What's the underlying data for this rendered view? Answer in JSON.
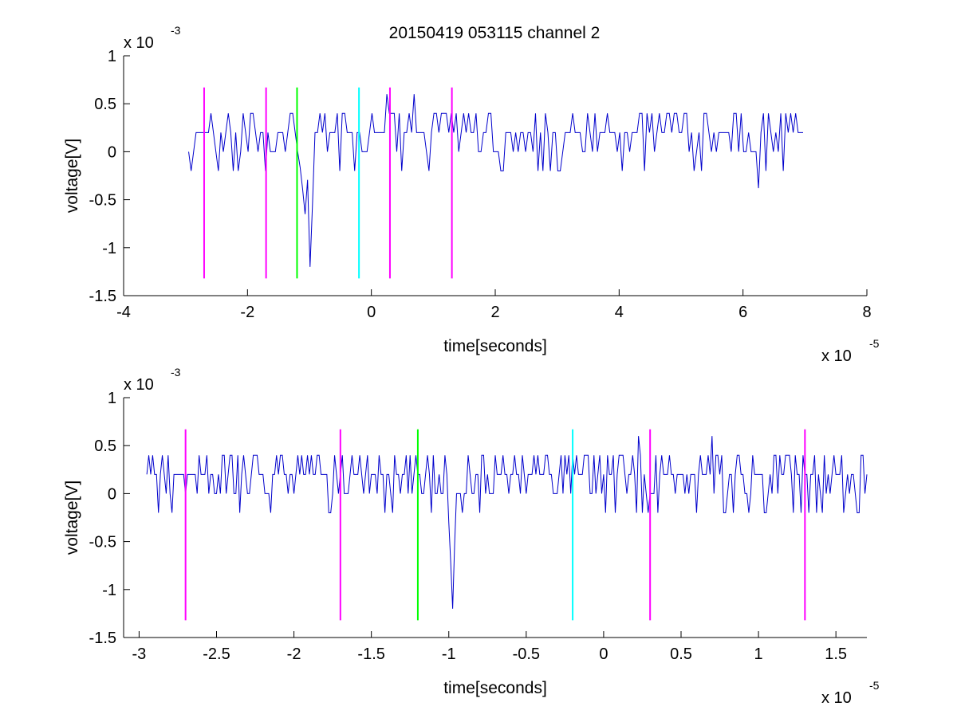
{
  "figure_title": "20150419 053115 channel 2",
  "chart_data": [
    {
      "type": "line",
      "xlabel": "time[seconds]",
      "ylabel": "voltage[V]",
      "x_exponent_label": "x 10",
      "x_exponent": "-5",
      "y_exponent_label": "x 10",
      "y_exponent": "-3",
      "xlim": [
        -4,
        8
      ],
      "ylim": [
        -1.5,
        1
      ],
      "xticks": [
        -4,
        -2,
        0,
        2,
        4,
        6,
        8
      ],
      "xtick_labels": [
        "-4",
        "-2",
        "0",
        "2",
        "4",
        "6",
        "8"
      ],
      "yticks": [
        -1.5,
        -1,
        -0.5,
        0,
        0.5,
        1
      ],
      "ytick_labels": [
        "-1.5",
        "-1",
        "-0.5",
        "0",
        "0.5",
        "1"
      ],
      "grid": false,
      "signal": {
        "color": "#0000cc",
        "x_start": -2.95,
        "x_end": 7.0,
        "levels": [
          0,
          0.2,
          0.4
        ],
        "noise_min": -0.2,
        "spikes": [
          {
            "x": -1.0,
            "y": -1.2
          },
          {
            "x": -1.05,
            "y": -0.65
          },
          {
            "x": 0.25,
            "y": 0.6
          },
          {
            "x": 0.7,
            "y": 0.6
          },
          {
            "x": 6.25,
            "y": -0.38
          }
        ]
      },
      "markers": [
        {
          "x": -2.7,
          "color": "#ff00ff",
          "y_top": 0.67,
          "y_bottom": -1.32
        },
        {
          "x": -1.7,
          "color": "#ff00ff",
          "y_top": 0.67,
          "y_bottom": -1.32
        },
        {
          "x": -1.2,
          "color": "#00ff00",
          "y_top": 0.67,
          "y_bottom": -1.32
        },
        {
          "x": -0.2,
          "color": "#00ffff",
          "y_top": 0.67,
          "y_bottom": -1.32
        },
        {
          "x": 0.3,
          "color": "#ff00ff",
          "y_top": 0.67,
          "y_bottom": -1.32
        },
        {
          "x": 1.3,
          "color": "#ff00ff",
          "y_top": 0.67,
          "y_bottom": -1.32
        }
      ]
    },
    {
      "type": "line",
      "xlabel": "time[seconds]",
      "ylabel": "voltage[V]",
      "x_exponent_label": "x 10",
      "x_exponent": "-5",
      "y_exponent_label": "x 10",
      "y_exponent": "-3",
      "xlim": [
        -3.1,
        1.7
      ],
      "ylim": [
        -1.5,
        1
      ],
      "xticks": [
        -3,
        -2.5,
        -2,
        -1.5,
        -1,
        -0.5,
        0,
        0.5,
        1,
        1.5
      ],
      "xtick_labels": [
        "-3",
        "-2.5",
        "-2",
        "-1.5",
        "-1",
        "-0.5",
        "0",
        "0.5",
        "1",
        "1.5"
      ],
      "yticks": [
        -1.5,
        -1,
        -0.5,
        0,
        0.5,
        1
      ],
      "ytick_labels": [
        "-1.5",
        "-1",
        "-0.5",
        "0",
        "0.5",
        "1"
      ],
      "grid": false,
      "signal": {
        "color": "#0000cc",
        "x_start": -2.95,
        "x_end": 1.7,
        "levels": [
          0,
          0.2,
          0.4
        ],
        "noise_min": -0.2,
        "spikes": [
          {
            "x": -0.97,
            "y": -1.2
          },
          {
            "x": 0.23,
            "y": 0.6
          },
          {
            "x": 0.7,
            "y": 0.6
          }
        ]
      },
      "markers": [
        {
          "x": -2.7,
          "color": "#ff00ff",
          "y_top": 0.67,
          "y_bottom": -1.32
        },
        {
          "x": -1.7,
          "color": "#ff00ff",
          "y_top": 0.67,
          "y_bottom": -1.32
        },
        {
          "x": -1.2,
          "color": "#00ff00",
          "y_top": 0.67,
          "y_bottom": -1.32
        },
        {
          "x": -0.2,
          "color": "#00ffff",
          "y_top": 0.67,
          "y_bottom": -1.32
        },
        {
          "x": 0.3,
          "color": "#ff00ff",
          "y_top": 0.67,
          "y_bottom": -1.32
        },
        {
          "x": 1.3,
          "color": "#ff00ff",
          "y_top": 0.67,
          "y_bottom": -1.32
        }
      ]
    }
  ]
}
